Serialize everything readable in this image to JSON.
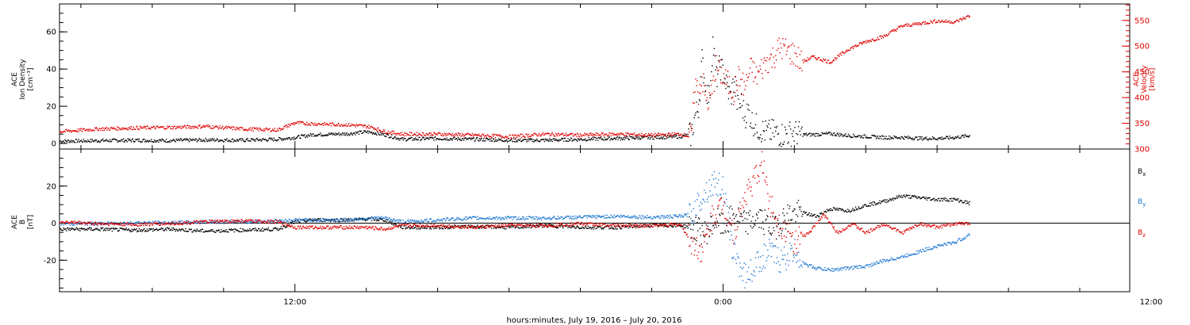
{
  "xlabel": "hours:minutes, July 19, 2016 – July 20, 2016",
  "chart_data": [
    {
      "type": "scatter",
      "panel": "plasma",
      "ylabel_lines": [
        "ACE",
        "Ion Density",
        "[cm⁻³]"
      ],
      "ylabel2_lines": [
        "ACE",
        "Velocity",
        "[km/s]"
      ],
      "xlim": [
        -18.6,
        11.4
      ],
      "ylim": [
        -3,
        75
      ],
      "ylim2": [
        300,
        582
      ],
      "yticks": [
        0,
        20,
        40,
        60
      ],
      "yticks2": [
        300,
        350,
        400,
        450,
        500,
        550
      ],
      "xticks": [
        -12,
        0,
        12
      ],
      "xticklabels": [
        "12:00",
        "0:00",
        "12:00"
      ],
      "colors": {
        "density": "#000000",
        "velocity": "#e00000"
      },
      "series": [
        {
          "axis": "left",
          "color": "#000000",
          "x": [
            -18.6,
            -17.5,
            -16.5,
            -15.5,
            -14.5,
            -13.5,
            -12.5,
            -12.0,
            -11.5,
            -10.5,
            -10.0,
            -9.8,
            -9.5,
            -9.0,
            -8.0,
            -7.0,
            -6.0,
            -5.0,
            -4.0,
            -3.0,
            -2.0,
            -1.2,
            -0.9,
            -0.8,
            -0.7,
            -0.6,
            -0.5,
            -0.4,
            -0.3,
            -0.2,
            -0.1,
            0.0,
            0.1,
            0.2,
            0.3,
            0.4,
            0.5,
            0.6,
            0.7,
            0.8,
            0.9,
            1.0,
            1.2,
            1.4,
            1.6,
            1.8,
            2.0,
            2.2,
            2.5,
            3.0,
            3.5,
            4.0,
            4.5,
            5.0,
            5.5,
            6.0,
            6.5,
            6.9
          ],
          "y": [
            1.5,
            1.8,
            2.0,
            1.8,
            2.2,
            2.0,
            2.5,
            3.5,
            5.0,
            5.5,
            6.5,
            6.0,
            5.0,
            2.5,
            3.0,
            2.5,
            2.0,
            2.0,
            2.5,
            3.0,
            3.5,
            4.0,
            5.0,
            15.0,
            20.0,
            45.0,
            30.0,
            25.0,
            55.0,
            35.0,
            42.0,
            38.0,
            30.0,
            25.0,
            35.0,
            20.0,
            22.0,
            15.0,
            18.0,
            12.0,
            10.0,
            8.0,
            6.0,
            6.5,
            5.0,
            5.5,
            6.0,
            5.0,
            5.0,
            5.5,
            4.5,
            4.0,
            3.5,
            3.5,
            3.0,
            3.0,
            3.5,
            4.5
          ]
        },
        {
          "axis": "right",
          "color": "#e00000",
          "x": [
            -18.6,
            -17.5,
            -16.5,
            -15.5,
            -14.5,
            -13.5,
            -12.5,
            -12.0,
            -11.5,
            -10.5,
            -10.0,
            -9.8,
            -9.5,
            -9.0,
            -8.0,
            -7.0,
            -6.0,
            -5.0,
            -4.0,
            -3.0,
            -2.0,
            -1.2,
            -0.9,
            -0.8,
            -0.7,
            -0.6,
            -0.5,
            -0.4,
            -0.3,
            -0.2,
            -0.1,
            0.0,
            0.1,
            0.2,
            0.3,
            0.4,
            0.5,
            0.6,
            0.7,
            0.8,
            0.9,
            1.0,
            1.2,
            1.4,
            1.6,
            1.8,
            2.0,
            2.2,
            2.5,
            3.0,
            3.5,
            4.0,
            4.5,
            5.0,
            5.5,
            6.0,
            6.5,
            6.9
          ],
          "y": [
            335,
            340,
            342,
            343,
            345,
            340,
            338,
            352,
            350,
            348,
            345,
            342,
            335,
            330,
            330,
            328,
            325,
            330,
            328,
            330,
            328,
            330,
            325,
            430,
            410,
            440,
            400,
            390,
            420,
            460,
            450,
            440,
            430,
            420,
            410,
            440,
            430,
            420,
            445,
            460,
            440,
            450,
            470,
            480,
            500,
            490,
            485,
            470,
            480,
            470,
            495,
            510,
            520,
            540,
            545,
            550,
            548,
            560
          ]
        }
      ]
    },
    {
      "type": "scatter",
      "panel": "magnetic",
      "ylabel_lines": [
        "ACE",
        "B",
        "[nT]"
      ],
      "xlim": [
        -18.6,
        11.4
      ],
      "ylim": [
        -37,
        40
      ],
      "yticks": [
        -20,
        0,
        20
      ],
      "xticks": [
        -12,
        0,
        12
      ],
      "xticklabels": [
        "12:00",
        "0:00",
        "12:00"
      ],
      "zero_line": true,
      "series": [
        {
          "name": "Bx",
          "color": "#000000",
          "x": [
            -18.6,
            -17.5,
            -16.5,
            -15.5,
            -14.5,
            -13.5,
            -12.5,
            -12.0,
            -11.5,
            -10.5,
            -10.0,
            -9.5,
            -9.0,
            -8.0,
            -7.0,
            -6.0,
            -5.0,
            -4.0,
            -3.0,
            -2.0,
            -1.2,
            -0.9,
            -0.5,
            -0.2,
            0.0,
            0.3,
            0.6,
            1.0,
            1.4,
            1.8,
            2.2,
            2.6,
            3.0,
            3.5,
            4.0,
            4.5,
            5.0,
            5.5,
            6.0,
            6.5,
            6.9
          ],
          "y": [
            -3,
            -3,
            -3.5,
            -3,
            -4,
            -3.5,
            -3,
            1,
            2,
            2,
            2.5,
            2,
            -2,
            -2,
            -1.5,
            -2,
            -1,
            -2,
            -2,
            -1,
            -1,
            -2,
            -5,
            2,
            -2,
            5,
            0,
            3,
            -3,
            5,
            6,
            4,
            8,
            7,
            10,
            12,
            15,
            14,
            13,
            13,
            11
          ]
        },
        {
          "name": "By",
          "color": "#1f78d1",
          "x": [
            -18.6,
            -17.5,
            -16.5,
            -15.5,
            -14.5,
            -13.5,
            -12.5,
            -12.0,
            -11.5,
            -10.5,
            -10.0,
            -9.5,
            -9.0,
            -8.0,
            -7.0,
            -6.0,
            -5.0,
            -4.0,
            -3.0,
            -2.0,
            -1.2,
            -0.9,
            -0.6,
            -0.3,
            0.0,
            0.2,
            0.4,
            0.6,
            0.8,
            1.0,
            1.3,
            1.6,
            2.0,
            2.3,
            2.6,
            3.0,
            3.5,
            4.0,
            4.5,
            5.0,
            5.5,
            6.0,
            6.5,
            6.9
          ],
          "y": [
            0,
            0,
            0.5,
            0.5,
            1,
            1,
            1.5,
            2,
            2,
            2,
            3,
            3,
            1,
            2,
            3,
            3,
            3,
            3.5,
            4,
            3.5,
            4,
            5,
            15,
            22,
            20,
            -10,
            -20,
            -28,
            -25,
            -20,
            -15,
            -20,
            -15,
            -22,
            -24,
            -25,
            -24,
            -23,
            -20,
            -18,
            -15,
            -12,
            -10,
            -6
          ]
        },
        {
          "name": "Bz",
          "color": "#e00000",
          "x": [
            -18.6,
            -17.5,
            -16.5,
            -15.5,
            -14.5,
            -13.5,
            -12.5,
            -12.0,
            -11.5,
            -10.5,
            -10.0,
            -9.5,
            -9.0,
            -8.0,
            -7.0,
            -6.0,
            -5.0,
            -4.0,
            -3.0,
            -2.0,
            -1.2,
            -0.9,
            -0.6,
            -0.3,
            0.0,
            0.3,
            0.6,
            0.9,
            1.1,
            1.3,
            1.6,
            2.0,
            2.4,
            2.8,
            3.2,
            3.6,
            4.0,
            4.5,
            5.0,
            5.5,
            6.0,
            6.5,
            6.9
          ],
          "y": [
            1,
            0,
            -0.5,
            0,
            1,
            1.5,
            1,
            -2,
            -2,
            -2,
            -2,
            -3,
            -1,
            -1,
            -2,
            -1,
            -1,
            0,
            -1,
            -1,
            -0.5,
            -10,
            -15,
            5,
            10,
            -5,
            15,
            25,
            33,
            10,
            0,
            -10,
            -5,
            5,
            -5,
            0,
            -5,
            0,
            -5,
            0,
            -2,
            0,
            0
          ]
        }
      ]
    }
  ]
}
